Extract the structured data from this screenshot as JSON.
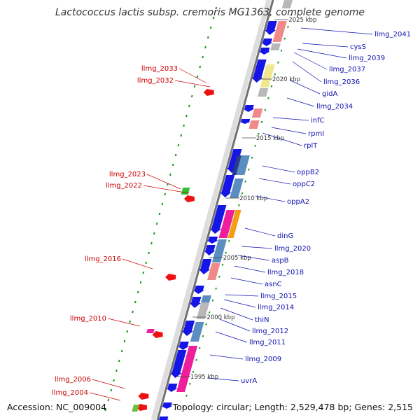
{
  "title": "Lactococcus lactis subsp. cremoris MG1363, complete genome",
  "footer": {
    "accession": "Accession: NC_009004",
    "stats": "Topology: circular; Length: 2,529,478 bp; Genes: 2,515"
  },
  "ticks": [
    "2025 kbp",
    "2020 kbp",
    "2015 kbp",
    "2010 kbp",
    "2005 kbp",
    "2000 kbp",
    "1995 kbp"
  ],
  "labels_right": [
    "llmg_2041",
    "cysS",
    "llmg_2039",
    "llmg_2037",
    "llmg_2036",
    "gidA",
    "llmg_2034",
    "infC",
    "rpmI",
    "rplT",
    "oppB2",
    "oppC2",
    "oppA2",
    "dinG",
    "llmg_2020",
    "aspB",
    "llmg_2018",
    "asnC",
    "llmg_2015",
    "llmg_2014",
    "thiN",
    "llmg_2012",
    "llmg_2011",
    "llmg_2009",
    "uvrA"
  ],
  "labels_left": [
    "llmg_2033",
    "llmg_2032",
    "llmg_2023",
    "llmg_2022",
    "llmg_2016",
    "llmg_2010",
    "llmg_2006",
    "llmg_2004"
  ],
  "colors": {
    "gene_blue": "#1515e6",
    "rna_pink": "#f08a8a",
    "cog_steel": "#5a8ec0",
    "cog_yellow": "#f0e890",
    "cog_gray": "#b8b8b8",
    "cog_magenta": "#ee1e9c",
    "cog_orange": "#f0a010",
    "gc_green": "#1a9a1a",
    "left_red": "#ee1111",
    "label_blue": "#1010b0",
    "label_red": "#cc0000"
  }
}
